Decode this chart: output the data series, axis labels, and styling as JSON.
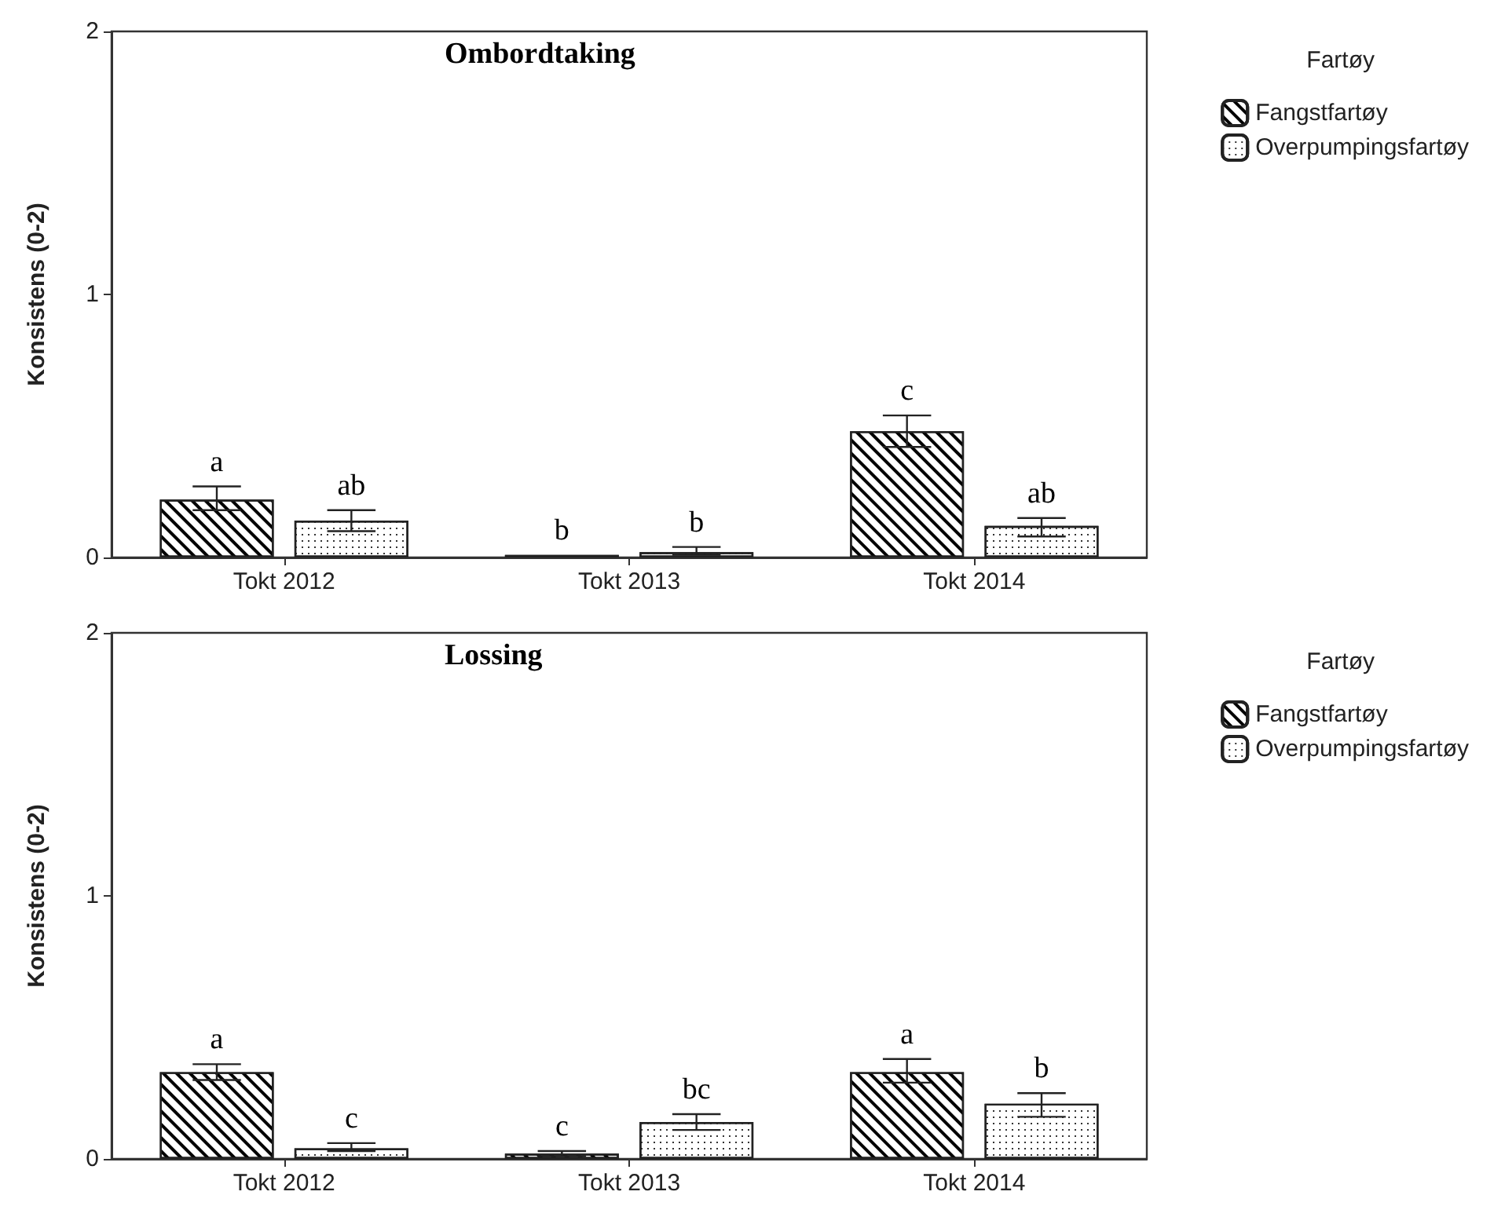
{
  "chart_data": [
    {
      "type": "bar",
      "title": "Ombordtaking",
      "ylabel": "Konsistens (0-2)",
      "legend_title": "Fartøy",
      "categories": [
        "Tokt 2012",
        "Tokt 2013",
        "Tokt 2014"
      ],
      "ylim": [
        0,
        2
      ],
      "yticks": [
        0,
        1,
        2
      ],
      "legend": "right",
      "grid": false,
      "series": [
        {
          "name": "Fangstfartøy",
          "color": "#ffffff",
          "values": [
            0.22,
            0.01,
            0.48
          ],
          "errors": [
            [
              0.18,
              0.27
            ],
            null,
            [
              0.42,
              0.54
            ]
          ],
          "value_labels": [
            "a",
            "b",
            "c"
          ]
        },
        {
          "name": "Overpumpingsfartøy",
          "color": "#ffffff",
          "values": [
            0.14,
            0.02,
            0.12
          ],
          "errors": [
            [
              0.1,
              0.18
            ],
            [
              0.01,
              0.04
            ],
            [
              0.08,
              0.15
            ]
          ],
          "value_labels": [
            "ab",
            "b",
            "ab"
          ]
        }
      ]
    },
    {
      "type": "bar",
      "title": "Lossing",
      "ylabel": "Konsistens (0-2)",
      "legend_title": "Fartøy",
      "categories": [
        "Tokt 2012",
        "Tokt 2013",
        "Tokt 2014"
      ],
      "ylim": [
        0,
        2
      ],
      "yticks": [
        0,
        1,
        2
      ],
      "legend": "right",
      "grid": false,
      "series": [
        {
          "name": "Fangstfartøy",
          "color": "#ffffff",
          "values": [
            0.33,
            0.02,
            0.33
          ],
          "errors": [
            [
              0.3,
              0.36
            ],
            [
              0.01,
              0.03
            ],
            [
              0.29,
              0.38
            ]
          ],
          "value_labels": [
            "a",
            "c",
            "a"
          ]
        },
        {
          "name": "Overpumpingsfartøy",
          "color": "#ffffff",
          "values": [
            0.04,
            0.14,
            0.21
          ],
          "errors": [
            [
              0.03,
              0.06
            ],
            [
              0.11,
              0.17
            ],
            [
              0.16,
              0.25
            ]
          ],
          "value_labels": [
            "c",
            "bc",
            "b"
          ]
        }
      ]
    }
  ]
}
